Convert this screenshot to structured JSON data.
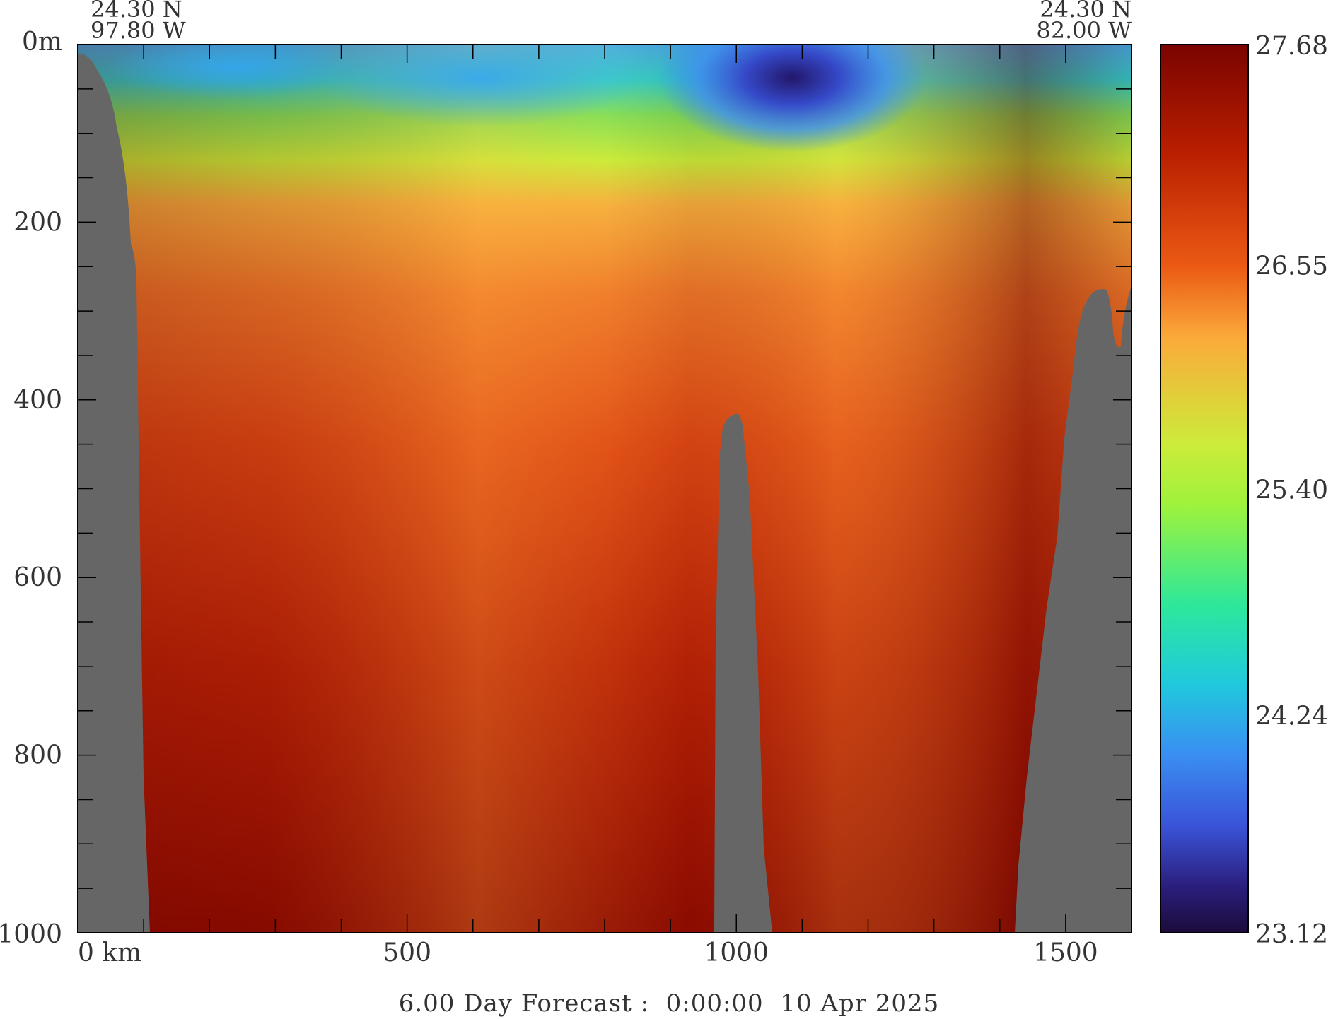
{
  "chart_data": {
    "type": "heatmap",
    "title": "",
    "xlabel": "",
    "ylabel": "",
    "x_unit": "km",
    "y_unit": "m",
    "xlim": [
      0,
      1600
    ],
    "ylim": [
      0,
      1000
    ],
    "x_ticks": [
      {
        "value": 0,
        "label": "0 km"
      },
      {
        "value": 500,
        "label": "500"
      },
      {
        "value": 1000,
        "label": "1000"
      },
      {
        "value": 1500,
        "label": "1500"
      }
    ],
    "y_ticks": [
      {
        "value": 0,
        "label": "0m"
      },
      {
        "value": 200,
        "label": "200"
      },
      {
        "value": 400,
        "label": "400"
      },
      {
        "value": 600,
        "label": "600"
      },
      {
        "value": 800,
        "label": "800"
      },
      {
        "value": 1000,
        "label": "1000"
      }
    ],
    "section_start": {
      "lat": "24.30 N",
      "lon": "97.80 W"
    },
    "section_end": {
      "lat": "24.30 N",
      "lon": "82.00 W"
    },
    "colorbar": {
      "min": 23.12,
      "max": 27.68,
      "tick_labels": [
        "27.68",
        "26.55",
        "25.40",
        "24.24",
        "23.12"
      ],
      "tick_values": [
        27.68,
        26.55,
        25.4,
        24.24,
        23.12
      ]
    },
    "footer": "6.00 Day Forecast :  0:00:00  10 Apr 2025",
    "colors": {
      "land": "#666666",
      "cold": "#2b1055",
      "blue": "#3a8ef2",
      "cyan": "#1fd6c6",
      "green": "#a7f23a",
      "orange": "#f9a43a",
      "warm": "#7a0a00"
    }
  }
}
